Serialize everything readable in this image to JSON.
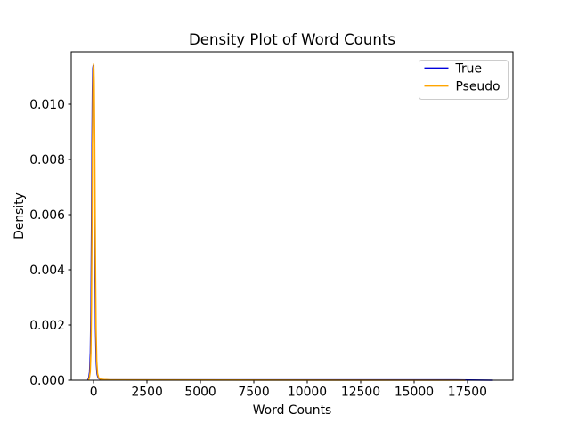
{
  "chart_data": {
    "type": "line",
    "title": "Density Plot of Word Counts",
    "xlabel": "Word Counts",
    "ylabel": "Density",
    "xlim": [
      -1050,
      19630
    ],
    "ylim": [
      0,
      0.0119
    ],
    "x_ticks": [
      0,
      2500,
      5000,
      7500,
      10000,
      12500,
      15000,
      17500
    ],
    "x_tick_labels": [
      "0",
      "2500",
      "5000",
      "7500",
      "10000",
      "12500",
      "15000",
      "17500"
    ],
    "y_ticks": [
      0.0,
      0.002,
      0.004,
      0.006,
      0.008,
      0.01
    ],
    "y_tick_labels": [
      "0.000",
      "0.002",
      "0.004",
      "0.006",
      "0.008",
      "0.010"
    ],
    "grid": false,
    "legend_position": "upper right",
    "background_color": "#ffffff",
    "spine_color": "#000000",
    "series": [
      {
        "name": "True",
        "color": "#0000dd",
        "x": [
          -280,
          -230,
          -190,
          -155,
          -125,
          -100,
          -78,
          -58,
          -38,
          -18,
          2,
          22,
          45,
          68,
          92,
          120,
          155,
          210,
          320,
          700,
          17000,
          18650
        ],
        "y": [
          0,
          8e-05,
          0.0003,
          0.001,
          0.0027,
          0.0055,
          0.0085,
          0.0105,
          0.0113,
          0.0114,
          0.0107,
          0.009,
          0.0062,
          0.0036,
          0.0018,
          0.0007,
          0.00025,
          8e-05,
          3e-05,
          1e-05,
          1e-05,
          0
        ]
      },
      {
        "name": "Pseudo",
        "color": "#ffa500",
        "x": [
          -255,
          -205,
          -165,
          -132,
          -104,
          -80,
          -58,
          -38,
          -18,
          2,
          22,
          42,
          65,
          88,
          112,
          142,
          178,
          235,
          350,
          800,
          17400
        ],
        "y": [
          0,
          8e-05,
          0.0003,
          0.001,
          0.0027,
          0.0055,
          0.0085,
          0.0105,
          0.0113,
          0.01145,
          0.0108,
          0.0091,
          0.0063,
          0.0037,
          0.0018,
          0.0007,
          0.00025,
          8e-05,
          3e-05,
          1e-05,
          0
        ]
      }
    ]
  }
}
